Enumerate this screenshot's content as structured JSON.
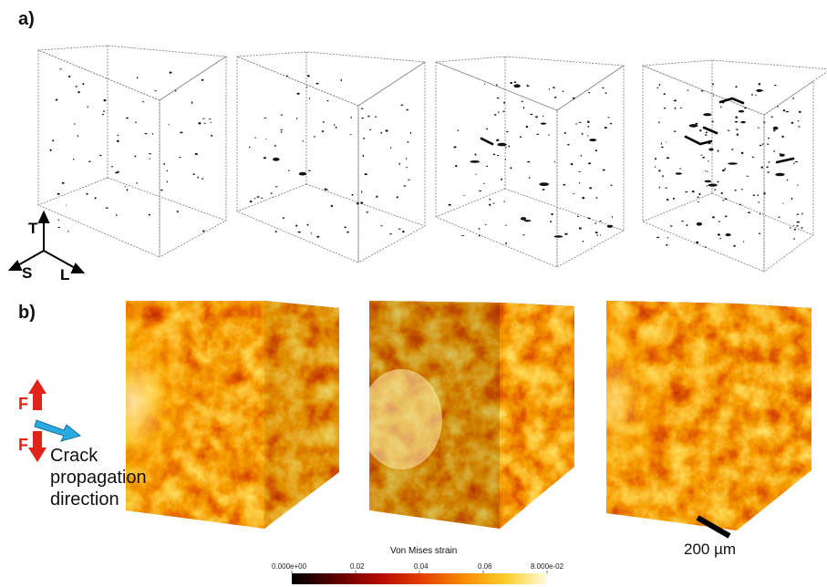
{
  "panels": {
    "a_label": "a)",
    "b_label": "b)"
  },
  "axes_triad": {
    "t": "T",
    "s": "S",
    "l": "L"
  },
  "loading": {
    "force_top": "F",
    "force_bottom": "F",
    "crack_line1": "Crack",
    "crack_line2": "propagation",
    "crack_line3": "direction",
    "force_color": "#e2231a",
    "crack_arrow_color": "#29abe2"
  },
  "scale_bar": {
    "label": "200 µm"
  },
  "colorbar": {
    "title": "Von Mises strain",
    "ticks": [
      "0.000e+00",
      "0.02",
      "0.04",
      "0.06",
      "8.000e-02"
    ],
    "range": [
      0,
      0.08
    ],
    "colormap": [
      "#000000",
      "#5a0000",
      "#b20a00",
      "#e43a00",
      "#f78a00",
      "#fccf2a",
      "#fffbe0"
    ]
  }
}
